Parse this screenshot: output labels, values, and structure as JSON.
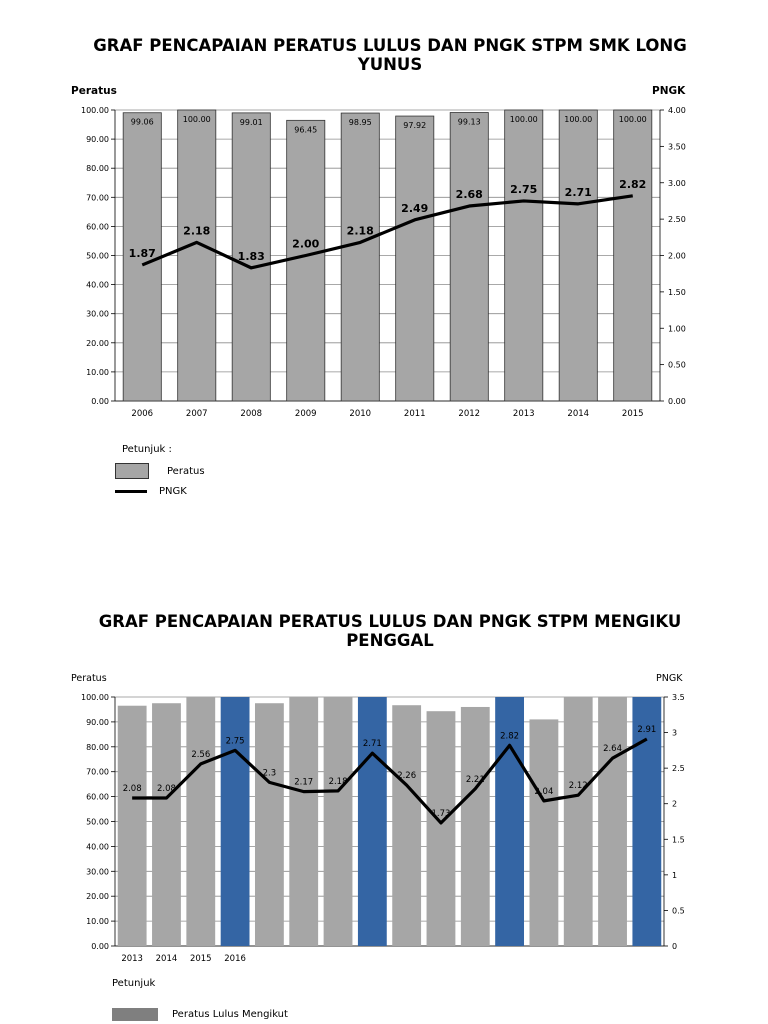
{
  "chart_data": [
    {
      "type": "bar",
      "title": "GRAF PENCAPAIAN PERATUS LULUS DAN PNGK STPM SMK LONG YUNUS",
      "ylabel": "Peratus",
      "y2label": "PNGK",
      "categories": [
        "2006",
        "2007",
        "2008",
        "2009",
        "2010",
        "2011",
        "2012",
        "2013",
        "2014",
        "2015"
      ],
      "ylim": [
        0,
        100
      ],
      "y2lim": [
        0,
        4
      ],
      "yticks": [
        "0.00",
        "10.00",
        "20.00",
        "30.00",
        "40.00",
        "50.00",
        "60.00",
        "70.00",
        "80.00",
        "90.00",
        "100.00"
      ],
      "y2ticks": [
        "0.00",
        "0.50",
        "1.00",
        "1.50",
        "2.00",
        "2.50",
        "3.00",
        "3.50",
        "4.00"
      ],
      "series": [
        {
          "name": "Peratus",
          "type": "bar",
          "axis": "left",
          "values": [
            99.06,
            100.0,
            99.01,
            96.45,
            98.95,
            97.92,
            99.13,
            100.0,
            100.0,
            100.0
          ],
          "labels": [
            "99.06",
            "100.00",
            "99.01",
            "96.45",
            "98.95",
            "97.92",
            "99.13",
            "100.00",
            "100.00",
            "100.00"
          ],
          "color": "#a6a6a6"
        },
        {
          "name": "PNGK",
          "type": "line",
          "axis": "right",
          "values": [
            1.87,
            2.18,
            1.83,
            2.0,
            2.18,
            2.49,
            2.68,
            2.75,
            2.71,
            2.82
          ],
          "labels": [
            "1.87",
            "2.18",
            "1.83",
            "2.00",
            "2.18",
            "2.49",
            "2.68",
            "2.75",
            "2.71",
            "2.82"
          ],
          "color": "#000000"
        }
      ],
      "grid": true,
      "legend": {
        "title": "Petunjuk :",
        "placement": "bottom-left",
        "items": [
          "Peratus",
          "PNGK"
        ]
      }
    },
    {
      "type": "bar",
      "title": "GRAF PENCAPAIAN PERATUS LULUS DAN PNGK STPM MENGIKU PENGGAL",
      "ylabel": "Peratus",
      "y2label": "PNGK",
      "categories": [
        "2013",
        "2014",
        "2015",
        "2016",
        "",
        "",
        "",
        "",
        "",
        "",
        "",
        "",
        "",
        "",
        "",
        ""
      ],
      "ylim": [
        0,
        100
      ],
      "y2lim": [
        0,
        3.5
      ],
      "yticks": [
        "0.00",
        "10.00",
        "20.00",
        "30.00",
        "40.00",
        "50.00",
        "60.00",
        "70.00",
        "80.00",
        "90.00",
        "100.00"
      ],
      "y2ticks": [
        "0",
        "0.5",
        "1",
        "1.5",
        "2",
        "2.5",
        "3",
        "3.5"
      ],
      "series": [
        {
          "type": "bar",
          "axis": "left",
          "values": [
            96.5,
            97.5,
            100,
            100,
            97.5,
            100,
            100,
            100,
            96.7,
            94.3,
            96.0,
            100,
            91.0,
            100,
            100,
            100
          ],
          "highlight": [
            false,
            false,
            false,
            true,
            false,
            false,
            false,
            true,
            false,
            false,
            false,
            true,
            false,
            false,
            false,
            true
          ],
          "color": "#a6a6a6",
          "highlight_color": "#3465a4"
        },
        {
          "type": "line",
          "axis": "right",
          "values": [
            2.08,
            2.08,
            2.56,
            2.75,
            2.3,
            2.17,
            2.18,
            2.71,
            2.26,
            1.73,
            2.21,
            2.82,
            2.04,
            2.12,
            2.64,
            2.91
          ],
          "labels": [
            "2.08",
            "2.08",
            "2.56",
            "2.75",
            "2.3",
            "2.17",
            "2.18",
            "2.71",
            "2.26",
            "1.73",
            "2.21",
            "2.82",
            "2.04",
            "2.12",
            "2.64",
            "2.91"
          ],
          "color": "#000000"
        }
      ],
      "grid": true,
      "legend": {
        "title": "Petunjuk",
        "placement": "bottom-left",
        "items": [
          "Peratus Lulus Mengikut"
        ]
      }
    }
  ]
}
